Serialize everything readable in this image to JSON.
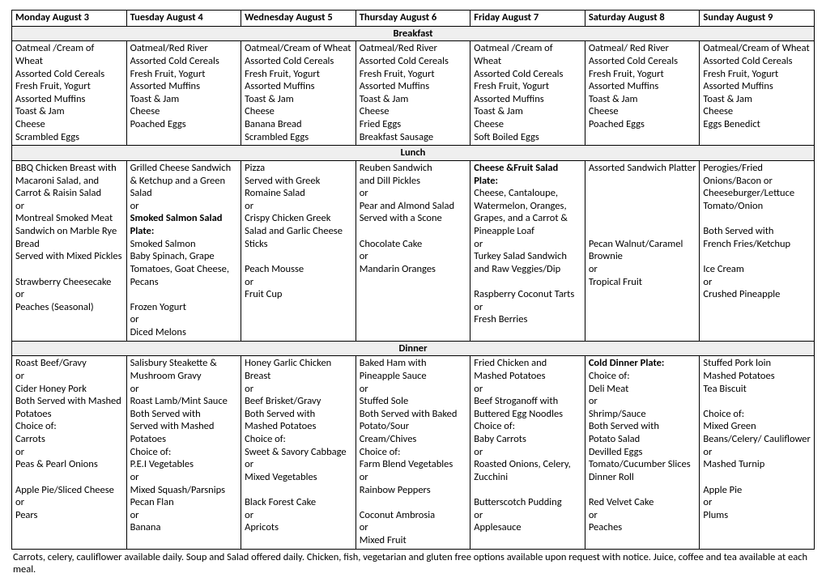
{
  "colors": {
    "section_bg": "#efefef",
    "border": "#000000",
    "text": "#000000",
    "page_bg": "#ffffff"
  },
  "days": [
    "Monday August 3",
    "Tuesday August 4",
    "Wednesday August 5",
    "Thursday August 6",
    "Friday August 7",
    "Saturday August 8",
    "Sunday August 9"
  ],
  "sections": {
    "breakfast": "Breakfast",
    "lunch": "Lunch",
    "dinner": "Dinner"
  },
  "breakfast": [
    [
      "Oatmeal /Cream of Wheat",
      "Assorted Cold Cereals",
      "Fresh Fruit, Yogurt",
      "Assorted Muffins",
      "Toast & Jam",
      "Cheese",
      "Scrambled Eggs"
    ],
    [
      "Oatmeal/Red River",
      "Assorted Cold Cereals",
      "Fresh Fruit, Yogurt",
      "Assorted Muffins",
      "Toast & Jam",
      "Cheese",
      "Poached Eggs"
    ],
    [
      "Oatmeal/Cream of Wheat",
      "Assorted Cold Cereals",
      "Fresh Fruit, Yogurt",
      "Assorted Muffins",
      "Toast & Jam",
      "Cheese",
      "Banana Bread",
      "Scrambled Eggs"
    ],
    [
      "Oatmeal/Red River",
      "Assorted Cold Cereals",
      "Fresh Fruit, Yogurt",
      "Assorted Muffins",
      "Toast & Jam",
      "Cheese",
      "Fried Eggs",
      "Breakfast Sausage"
    ],
    [
      "Oatmeal /Cream of Wheat",
      "Assorted Cold Cereals",
      "Fresh Fruit, Yogurt",
      "Assorted Muffins",
      "Toast & Jam",
      "Cheese",
      "Soft Boiled Eggs"
    ],
    [
      "Oatmeal/ Red River",
      "Assorted Cold Cereals",
      "Fresh Fruit, Yogurt",
      "Assorted Muffins",
      "Toast & Jam",
      "Cheese",
      "Poached Eggs"
    ],
    [
      "Oatmeal/Cream of Wheat",
      "Assorted Cold Cereals",
      "Fresh Fruit, Yogurt",
      "Assorted Muffins",
      "Toast & Jam",
      "Cheese",
      "Eggs Benedict"
    ]
  ],
  "lunch": [
    [
      {
        "t": "BBQ Chicken Breast with Macaroni Salad, and Carrot & Raisin Salad"
      },
      {
        "t": "or"
      },
      {
        "t": "Montreal Smoked Meat Sandwich on Marble Rye Bread"
      },
      {
        "t": "Served with Mixed Pickles"
      },
      {
        "t": ""
      },
      {
        "t": "Strawberry Cheesecake"
      },
      {
        "t": "or"
      },
      {
        "t": "Peaches (Seasonal)"
      }
    ],
    [
      {
        "t": "Grilled Cheese Sandwich & Ketchup and a Green Salad"
      },
      {
        "t": "or"
      },
      {
        "t": "Smoked Salmon Salad Plate:",
        "b": true
      },
      {
        "t": "Smoked Salmon"
      },
      {
        "t": "Baby Spinach, Grape Tomatoes, Goat Cheese, Pecans"
      },
      {
        "t": ""
      },
      {
        "t": "Frozen Yogurt"
      },
      {
        "t": "or"
      },
      {
        "t": "Diced Melons"
      }
    ],
    [
      {
        "t": "Pizza"
      },
      {
        "t": "Served with Greek Romaine Salad"
      },
      {
        "t": "or"
      },
      {
        "t": "Crispy Chicken Greek Salad and Garlic Cheese Sticks"
      },
      {
        "t": ""
      },
      {
        "t": "Peach Mousse"
      },
      {
        "t": "or"
      },
      {
        "t": "Fruit Cup"
      }
    ],
    [
      {
        "t": "Reuben Sandwich"
      },
      {
        "t": "and Dill Pickles"
      },
      {
        "t": "or"
      },
      {
        "t": "Pear and Almond Salad Served with a Scone"
      },
      {
        "t": ""
      },
      {
        "t": "Chocolate Cake"
      },
      {
        "t": "or"
      },
      {
        "t": "Mandarin Oranges"
      }
    ],
    [
      {
        "t": "Cheese &Fruit Salad Plate:",
        "b": true
      },
      {
        "t": "Cheese, Cantaloupe, Watermelon, Oranges, Grapes, and a Carrot & Pineapple Loaf"
      },
      {
        "t": "or"
      },
      {
        "t": "Turkey Salad Sandwich and Raw Veggies/Dip"
      },
      {
        "t": ""
      },
      {
        "t": "Raspberry Coconut Tarts"
      },
      {
        "t": "or"
      },
      {
        "t": "Fresh Berries"
      }
    ],
    [
      {
        "t": "Assorted Sandwich Platter"
      },
      {
        "t": ""
      },
      {
        "t": ""
      },
      {
        "t": ""
      },
      {
        "t": ""
      },
      {
        "t": ""
      },
      {
        "t": "Pecan Walnut/Caramel Brownie"
      },
      {
        "t": "or"
      },
      {
        "t": "Tropical Fruit"
      }
    ],
    [
      {
        "t": "Perogies/Fried Onions/Bacon or Cheeseburger/Lettuce Tomato/Onion"
      },
      {
        "t": ""
      },
      {
        "t": "Both Served with"
      },
      {
        "t": "French Fries/Ketchup"
      },
      {
        "t": ""
      },
      {
        "t": "Ice Cream"
      },
      {
        "t": "or"
      },
      {
        "t": "Crushed Pineapple"
      }
    ]
  ],
  "dinner": [
    [
      {
        "t": "Roast Beef/Gravy"
      },
      {
        "t": "or"
      },
      {
        "t": "Cider Honey Pork"
      },
      {
        "t": "Both Served with Mashed Potatoes"
      },
      {
        "t": "Choice of:"
      },
      {
        "t": "Carrots"
      },
      {
        "t": "or"
      },
      {
        "t": "Peas & Pearl Onions"
      },
      {
        "t": ""
      },
      {
        "t": "Apple Pie/Sliced Cheese"
      },
      {
        "t": "or"
      },
      {
        "t": "Pears"
      }
    ],
    [
      {
        "t": "Salisbury Steakette & Mushroom Gravy"
      },
      {
        "t": "or"
      },
      {
        "t": "Roast Lamb/Mint Sauce"
      },
      {
        "t": "Both Served with"
      },
      {
        "t": "Served with Mashed Potatoes"
      },
      {
        "t": "Choice of:"
      },
      {
        "t": "P.E.I Vegetables"
      },
      {
        "t": "or"
      },
      {
        "t": "Mixed Squash/Parsnips"
      },
      {
        "t": "Pecan Flan"
      },
      {
        "t": "or"
      },
      {
        "t": "Banana"
      }
    ],
    [
      {
        "t": "Honey Garlic Chicken Breast"
      },
      {
        "t": "or"
      },
      {
        "t": "Beef Brisket/Gravy"
      },
      {
        "t": "Both Served with"
      },
      {
        "t": "Mashed Potatoes"
      },
      {
        "t": "Choice of:"
      },
      {
        "t": "Sweet & Savory Cabbage"
      },
      {
        "t": "or"
      },
      {
        "t": "Mixed Vegetables"
      },
      {
        "t": ""
      },
      {
        "t": "Black Forest Cake"
      },
      {
        "t": "or"
      },
      {
        "t": "Apricots"
      }
    ],
    [
      {
        "t": "Baked Ham with Pineapple Sauce"
      },
      {
        "t": "or"
      },
      {
        "t": "Stuffed Sole"
      },
      {
        "t": "Both Served with Baked Potato/Sour Cream/Chives"
      },
      {
        "t": "Choice of:"
      },
      {
        "t": "Farm Blend Vegetables"
      },
      {
        "t": "or"
      },
      {
        "t": "Rainbow Peppers"
      },
      {
        "t": ""
      },
      {
        "t": "Coconut Ambrosia"
      },
      {
        "t": "or"
      },
      {
        "t": "Mixed Fruit"
      }
    ],
    [
      {
        "t": "Fried Chicken and Mashed Potatoes"
      },
      {
        "t": "or"
      },
      {
        "t": "Beef Stroganoff with Buttered Egg Noodles"
      },
      {
        "t": "Choice of:"
      },
      {
        "t": "Baby Carrots"
      },
      {
        "t": "or"
      },
      {
        "t": "Roasted Onions, Celery, Zucchini"
      },
      {
        "t": ""
      },
      {
        "t": "Butterscotch Pudding"
      },
      {
        "t": "or"
      },
      {
        "t": "Applesauce"
      }
    ],
    [
      {
        "t": "Cold Dinner Plate:",
        "b": true
      },
      {
        "t": "Choice of:"
      },
      {
        "t": "Deli Meat"
      },
      {
        "t": "or"
      },
      {
        "t": "Shrimp/Sauce"
      },
      {
        "t": "Both Served with"
      },
      {
        "t": "Potato Salad"
      },
      {
        "t": "Devilled Eggs"
      },
      {
        "t": "Tomato/Cucumber Slices"
      },
      {
        "t": "Dinner Roll"
      },
      {
        "t": ""
      },
      {
        "t": "Red Velvet Cake"
      },
      {
        "t": "or"
      },
      {
        "t": "Peaches"
      }
    ],
    [
      {
        "t": "Stuffed Pork loin"
      },
      {
        "t": "Mashed Potatoes"
      },
      {
        "t": "Tea Biscuit"
      },
      {
        "t": ""
      },
      {
        "t": "Choice of:"
      },
      {
        "t": "Mixed Green Beans/Celery/ Cauliflower"
      },
      {
        "t": "or"
      },
      {
        "t": "Mashed Turnip"
      },
      {
        "t": ""
      },
      {
        "t": "Apple Pie"
      },
      {
        "t": "or"
      },
      {
        "t": "Plums"
      }
    ]
  ],
  "footer": "Carrots, celery, cauliflower available daily.  Soup and Salad offered daily.   Chicken, fish, vegetarian and gluten free options available upon request with notice. Juice, coffee and tea available at each meal."
}
